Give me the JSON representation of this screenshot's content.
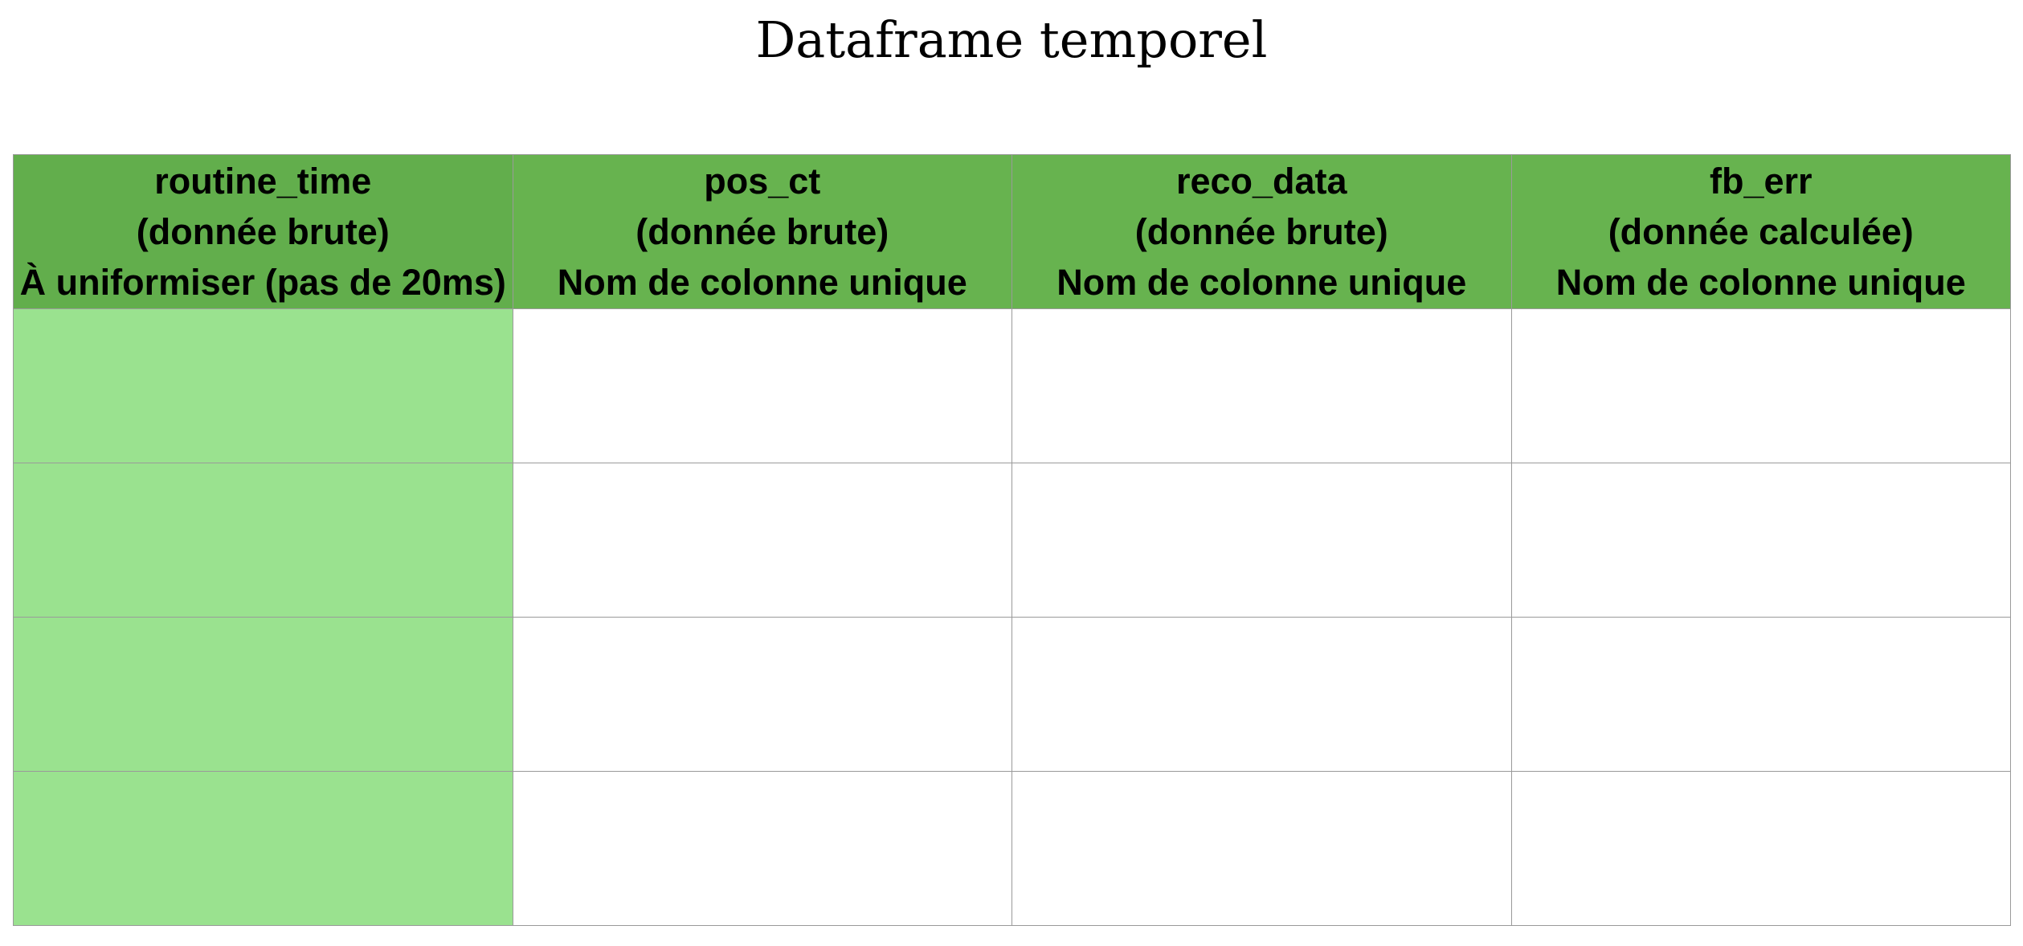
{
  "title": "Dataframe temporel",
  "colors": {
    "header_first": "#62ae4c",
    "header_other": "#67b34f",
    "first_column_cell": "#9ae28f",
    "cell": "#ffffff",
    "border": "#9a9a9a"
  },
  "columns": [
    {
      "lines": [
        "routine_time",
        "(donnée brute)",
        "À uniformiser (pas de 20ms)"
      ]
    },
    {
      "lines": [
        "pos_ct",
        "(donnée brute)",
        "Nom de colonne unique"
      ]
    },
    {
      "lines": [
        "reco_data",
        "(donnée brute)",
        "Nom de colonne unique"
      ]
    },
    {
      "lines": [
        "fb_err",
        "(donnée calculée)",
        "Nom de colonne unique"
      ]
    }
  ],
  "rows": [
    [
      "",
      "",
      "",
      ""
    ],
    [
      "",
      "",
      "",
      ""
    ],
    [
      "",
      "",
      "",
      ""
    ],
    [
      "",
      "",
      "",
      ""
    ]
  ]
}
